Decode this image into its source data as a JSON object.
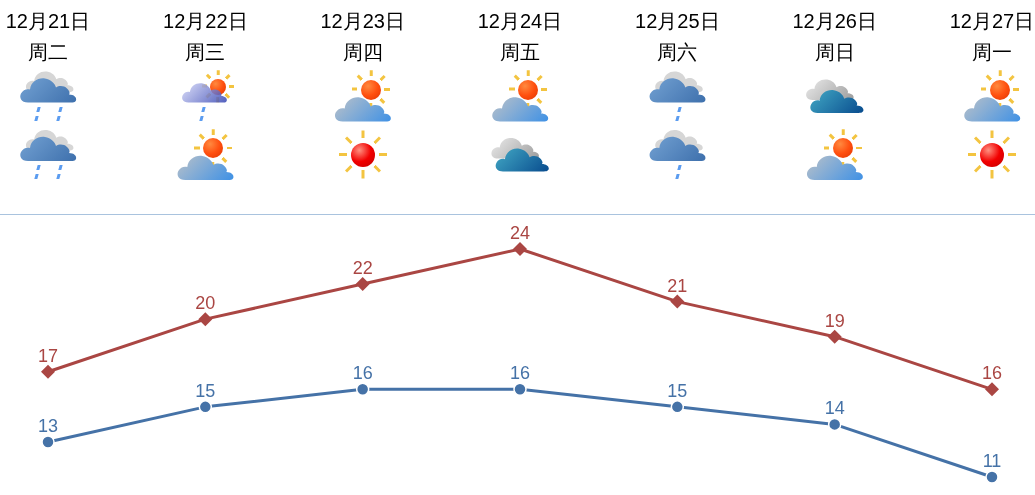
{
  "chart_data": {
    "type": "line",
    "categories": [
      "12月21日周二",
      "12月22日周三",
      "12月23日周四",
      "12月24日周五",
      "12月25日周六",
      "12月26日周日",
      "12月27日周一"
    ],
    "series": [
      {
        "color": "#aa4643",
        "marker": "diamond",
        "values": [
          17,
          20,
          22,
          24,
          21,
          19,
          16
        ]
      },
      {
        "color": "#4572a7",
        "marker": "circle",
        "values": [
          13,
          15,
          16,
          16,
          15,
          14,
          11
        ]
      }
    ],
    "line_style": "solid",
    "data_labels": true
  }
}
